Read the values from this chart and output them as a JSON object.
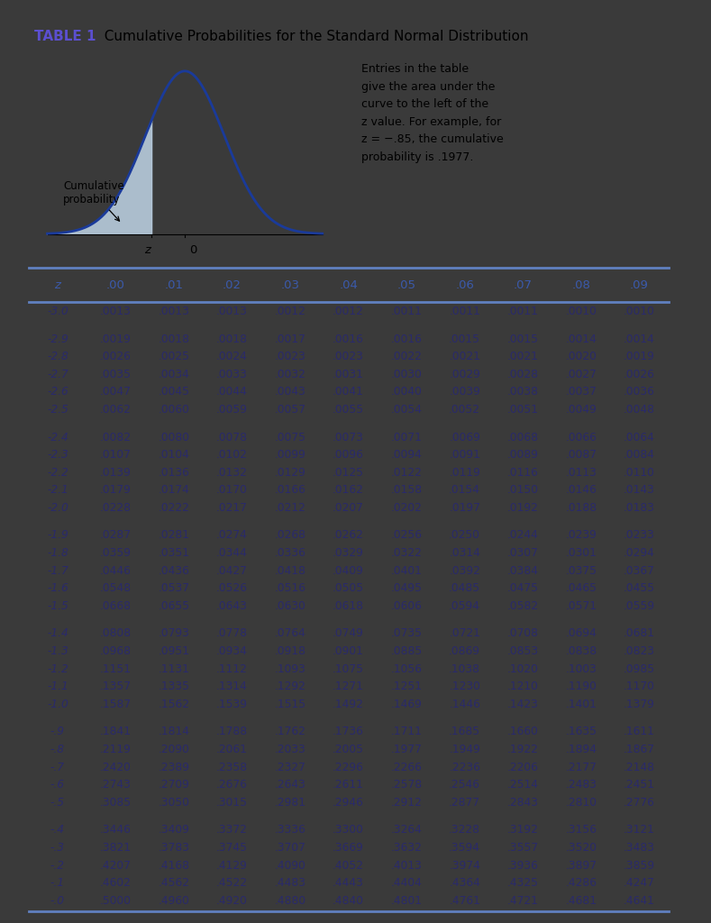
{
  "title_bold": "TABLE 1",
  "title_rest": "  Cumulative Probabilities for the Standard Normal Distribution",
  "header": [
    "z",
    ".00",
    ".01",
    ".02",
    ".03",
    ".04",
    ".05",
    ".06",
    ".07",
    ".08",
    ".09"
  ],
  "table_data": [
    [
      "-3.0",
      ".0013",
      ".0013",
      ".0013",
      ".0012",
      ".0012",
      ".0011",
      ".0011",
      ".0011",
      ".0010",
      ".0010"
    ],
    [
      "-2.9",
      ".0019",
      ".0018",
      ".0018",
      ".0017",
      ".0016",
      ".0016",
      ".0015",
      ".0015",
      ".0014",
      ".0014"
    ],
    [
      "-2.8",
      ".0026",
      ".0025",
      ".0024",
      ".0023",
      ".0023",
      ".0022",
      ".0021",
      ".0021",
      ".0020",
      ".0019"
    ],
    [
      "-2.7",
      ".0035",
      ".0034",
      ".0033",
      ".0032",
      ".0031",
      ".0030",
      ".0029",
      ".0028",
      ".0027",
      ".0026"
    ],
    [
      "-2.6",
      ".0047",
      ".0045",
      ".0044",
      ".0043",
      ".0041",
      ".0040",
      ".0039",
      ".0038",
      ".0037",
      ".0036"
    ],
    [
      "-2.5",
      ".0062",
      ".0060",
      ".0059",
      ".0057",
      ".0055",
      ".0054",
      ".0052",
      ".0051",
      ".0049",
      ".0048"
    ],
    [
      "-2.4",
      ".0082",
      ".0080",
      ".0078",
      ".0075",
      ".0073",
      ".0071",
      ".0069",
      ".0068",
      ".0066",
      ".0064"
    ],
    [
      "-2.3",
      ".0107",
      ".0104",
      ".0102",
      ".0099",
      ".0096",
      ".0094",
      ".0091",
      ".0089",
      ".0087",
      ".0084"
    ],
    [
      "-2.2",
      ".0139",
      ".0136",
      ".0132",
      ".0129",
      ".0125",
      ".0122",
      ".0119",
      ".0116",
      ".0113",
      ".0110"
    ],
    [
      "-2.1",
      ".0179",
      ".0174",
      ".0170",
      ".0166",
      ".0162",
      ".0158",
      ".0154",
      ".0150",
      ".0146",
      ".0143"
    ],
    [
      "-2.0",
      ".0228",
      ".0222",
      ".0217",
      ".0212",
      ".0207",
      ".0202",
      ".0197",
      ".0192",
      ".0188",
      ".0183"
    ],
    [
      "-1.9",
      ".0287",
      ".0281",
      ".0274",
      ".0268",
      ".0262",
      ".0256",
      ".0250",
      ".0244",
      ".0239",
      ".0233"
    ],
    [
      "-1.8",
      ".0359",
      ".0351",
      ".0344",
      ".0336",
      ".0329",
      ".0322",
      ".0314",
      ".0307",
      ".0301",
      ".0294"
    ],
    [
      "-1.7",
      ".0446",
      ".0436",
      ".0427",
      ".0418",
      ".0409",
      ".0401",
      ".0392",
      ".0384",
      ".0375",
      ".0367"
    ],
    [
      "-1.6",
      ".0548",
      ".0537",
      ".0526",
      ".0516",
      ".0505",
      ".0495",
      ".0485",
      ".0475",
      ".0465",
      ".0455"
    ],
    [
      "-1.5",
      ".0668",
      ".0655",
      ".0643",
      ".0630",
      ".0618",
      ".0606",
      ".0594",
      ".0582",
      ".0571",
      ".0559"
    ],
    [
      "-1.4",
      ".0808",
      ".0793",
      ".0778",
      ".0764",
      ".0749",
      ".0735",
      ".0721",
      ".0708",
      ".0694",
      ".0681"
    ],
    [
      "-1.3",
      ".0968",
      ".0951",
      ".0934",
      ".0918",
      ".0901",
      ".0885",
      ".0869",
      ".0853",
      ".0838",
      ".0823"
    ],
    [
      "-1.2",
      ".1151",
      ".1131",
      ".1112",
      ".1093",
      ".1075",
      ".1056",
      ".1038",
      ".1020",
      ".1003",
      ".0985"
    ],
    [
      "-1.1",
      ".1357",
      ".1335",
      ".1314",
      ".1292",
      ".1271",
      ".1251",
      ".1230",
      ".1210",
      ".1190",
      ".1170"
    ],
    [
      "-1.0",
      ".1587",
      ".1562",
      ".1539",
      ".1515",
      ".1492",
      ".1469",
      ".1446",
      ".1423",
      ".1401",
      ".1379"
    ],
    [
      "-.9",
      ".1841",
      ".1814",
      ".1788",
      ".1762",
      ".1736",
      ".1711",
      ".1685",
      ".1660",
      ".1635",
      ".1611"
    ],
    [
      "-.8",
      ".2119",
      ".2090",
      ".2061",
      ".2033",
      ".2005",
      ".1977",
      ".1949",
      ".1922",
      ".1894",
      ".1867"
    ],
    [
      "-.7",
      ".2420",
      ".2389",
      ".2358",
      ".2327",
      ".2296",
      ".2266",
      ".2236",
      ".2206",
      ".2177",
      ".2148"
    ],
    [
      "-.6",
      ".2743",
      ".2709",
      ".2676",
      ".2643",
      ".2611",
      ".2578",
      ".2546",
      ".2514",
      ".2483",
      ".2451"
    ],
    [
      "-.5",
      ".3085",
      ".3050",
      ".3015",
      ".2981",
      ".2946",
      ".2912",
      ".2877",
      ".2843",
      ".2810",
      ".2776"
    ],
    [
      "-.4",
      ".3446",
      ".3409",
      ".3372",
      ".3336",
      ".3300",
      ".3264",
      ".3228",
      ".3192",
      ".3156",
      ".3121"
    ],
    [
      "-.3",
      ".3821",
      ".3783",
      ".3745",
      ".3707",
      ".3669",
      ".3632",
      ".3594",
      ".3557",
      ".3520",
      ".3483"
    ],
    [
      "-.2",
      ".4207",
      ".4168",
      ".4129",
      ".4090",
      ".4052",
      ".4013",
      ".3974",
      ".3936",
      ".3897",
      ".3859"
    ],
    [
      "-.1",
      ".4602",
      ".4562",
      ".4522",
      ".4483",
      ".4443",
      ".4404",
      ".4364",
      ".4325",
      ".4286",
      ".4247"
    ],
    [
      "-.0",
      ".5000",
      ".4960",
      ".4920",
      ".4880",
      ".4840",
      ".4801",
      ".4761",
      ".4721",
      ".4681",
      ".4641"
    ]
  ],
  "group_breaks": [
    1,
    6,
    11,
    16,
    21,
    26
  ],
  "bg_color": "#ffffff",
  "outer_bg": "#3a3a3a",
  "title_color": "#5b4fcf",
  "header_color": "#3a5aab",
  "data_color": "#2a2a6a",
  "line_color": "#6080c0",
  "curve_color": "#1a3a9a",
  "fill_color": "#b8ccdd",
  "annotation_text": "Entries in the table\ngive the area under the\ncurve to the left of the\nz value. For example, for\nz = −.85, the cumulative\nprobability is .1977."
}
